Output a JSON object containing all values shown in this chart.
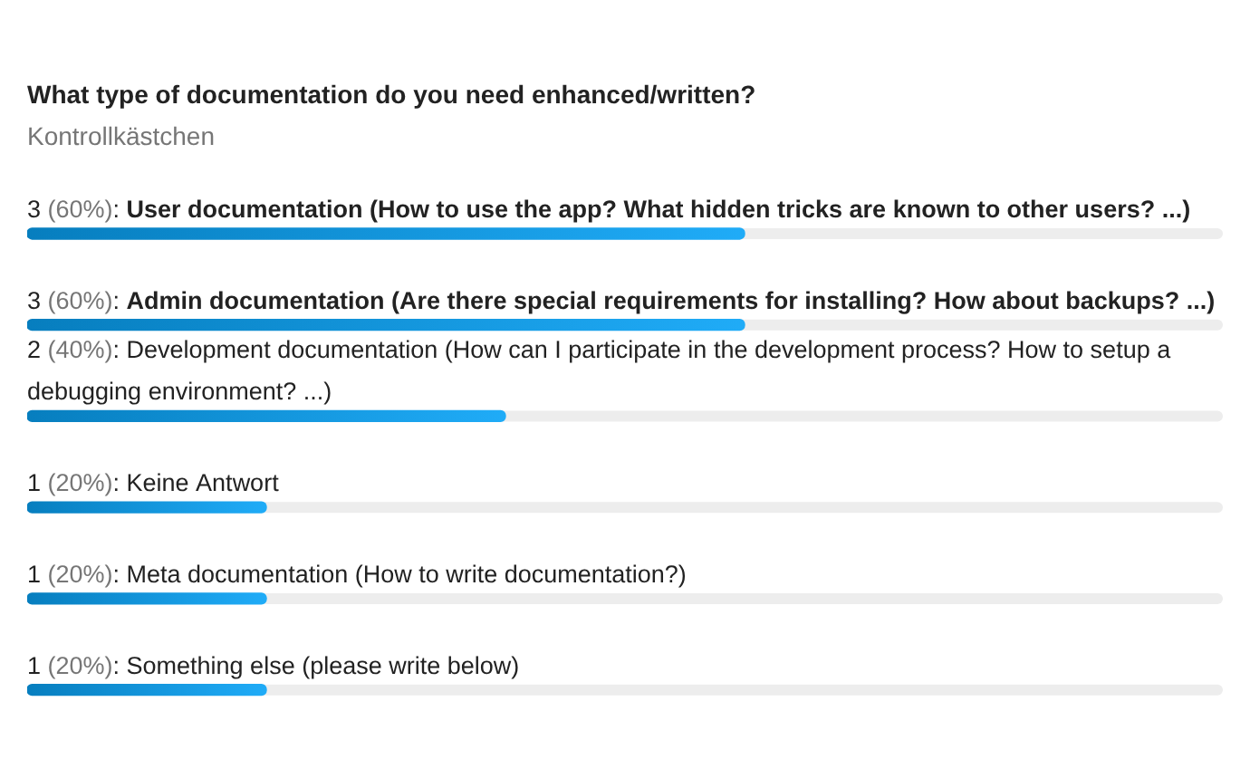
{
  "chart_data": {
    "type": "bar",
    "orientation": "horizontal",
    "title": "What type of documentation do you need enhanced/written?",
    "subtitle": "Kontrollkästchen",
    "categories": [
      "User documentation (How to use the app? What hidden tricks are known to other users? ...)",
      "Admin documentation (Are there special requirements for installing? How about backups? ...)",
      "Development documentation (How can I participate in the development process? How to setup a debugging environment? ...)",
      "Keine Antwort",
      "Meta documentation (How to write documentation?)",
      "Something else (please write below)"
    ],
    "values": [
      3,
      3,
      2,
      1,
      1,
      1
    ],
    "value_labels": [
      "3 (60%):",
      "3 (60%):",
      "2 (40%):",
      "1 (20%):",
      "1 (20%):",
      "1 (20%):"
    ],
    "color": "#0898e6",
    "xlim": [
      0,
      5
    ],
    "grid": false,
    "legend": false
  }
}
